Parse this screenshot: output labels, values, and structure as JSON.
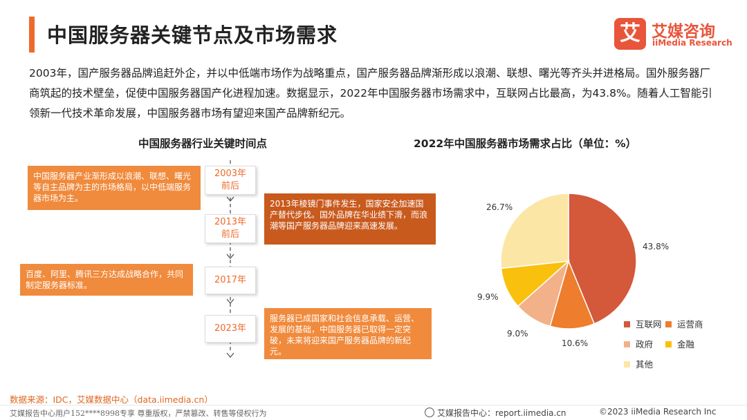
{
  "header": {
    "title": "中国服务器关键节点及市场需求",
    "logo_mark": "艾",
    "logo_cn": "艾媒咨询",
    "logo_en": "iiMedia Research"
  },
  "intro": "2003年，国产服务器品牌追赶外企，并以中低端市场作为战略重点，国产服务器品牌渐形成以浪潮、联想、曙光等齐头并进格局。国外服务器厂商筑起的技术壁垒，促使中国服务器国产化进程加速。数据显示，2022年中国服务器市场需求中，互联网占比最高，为43.8%。随着人工智能引领新一代技术革命发展，中国服务器市场有望迎来国产品牌新纪元。",
  "timeline": {
    "heading": "中国服务器行业关键时间点",
    "years": [
      "2003年\n前后",
      "2013年\n前后",
      "2017年",
      "2023年"
    ],
    "events": [
      "中国服务器产业渐形成以浪潮、联想、曙光等自主品牌为主的市场格局，以中低端服务器市场为主。",
      "2013年棱镜门事件发生，国家安全加速国产替代步伐。国外品牌在华业绩下滑，而浪潮等国产服务器品牌迎来高速发展。",
      "百度、阿里、腾讯三方达成战略合作，共同制定服务器标准。",
      "服务器已成国家和社会信息承载、运营、发展的基础，中国服务器已取得一定突破，未来将迎来国产服务器品牌的新纪元。"
    ]
  },
  "chart_data": {
    "type": "pie",
    "title": "2022年中国服务器市场需求占比（单位：%）",
    "categories": [
      "互联网",
      "运营商",
      "政府",
      "金融",
      "其他"
    ],
    "values": [
      43.8,
      10.6,
      9.0,
      9.9,
      26.7
    ],
    "value_labels": [
      "43.8%",
      "10.6%",
      "9.0%",
      "9.9%",
      "26.7%"
    ],
    "colors": [
      "#d4583a",
      "#ee7d2e",
      "#f2b189",
      "#f9c00d",
      "#fce6a6"
    ],
    "legend": "bottom-right"
  },
  "footer": {
    "source": "数据来源：IDC，艾媒数据中心（data.iimedia.cn）",
    "copyright_left": "艾媒报告中心用户152****8998专享 尊重版权，严禁篡改、转售等侵权行为",
    "report_center": "艾媒报告中心：report.iimedia.cn",
    "copyright_right": "©2023  iiMedia Research  Inc"
  }
}
